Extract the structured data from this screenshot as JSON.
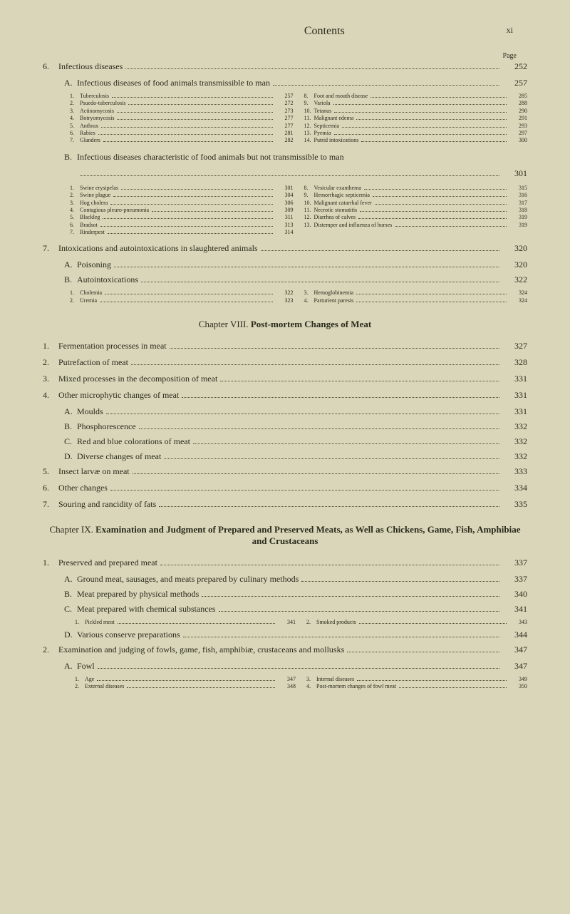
{
  "header": {
    "title": "Contents",
    "roman": "xi",
    "pageLabel": "Page"
  },
  "sections": [
    {
      "num": "6.",
      "title": "Infectious diseases",
      "page": "252",
      "subs": [
        {
          "letter": "A.",
          "title": "Infectious diseases of food animals transmissible to man",
          "page": "257",
          "itemsLeft": [
            {
              "n": "1.",
              "t": "Tuberculosis",
              "p": "257"
            },
            {
              "n": "2.",
              "t": "Psuedo-tuberculosis",
              "p": "272"
            },
            {
              "n": "3.",
              "t": "Actinomycosis",
              "p": "273"
            },
            {
              "n": "4.",
              "t": "Botryomycosis",
              "p": "277"
            },
            {
              "n": "5.",
              "t": "Anthrax",
              "p": "277"
            },
            {
              "n": "6.",
              "t": "Rabies",
              "p": "281"
            },
            {
              "n": "7.",
              "t": "Glanders",
              "p": "282"
            }
          ],
          "itemsRight": [
            {
              "n": "8.",
              "t": "Foot and mouth disease",
              "p": "285"
            },
            {
              "n": "9.",
              "t": "Variola",
              "p": "288"
            },
            {
              "n": "10.",
              "t": "Tetanus",
              "p": "290"
            },
            {
              "n": "11.",
              "t": "Malignant edema",
              "p": "291"
            },
            {
              "n": "12.",
              "t": "Septicemia",
              "p": "293"
            },
            {
              "n": "13.",
              "t": "Pyemia",
              "p": "297"
            },
            {
              "n": "14.",
              "t": "Putrid intoxications",
              "p": "300"
            }
          ]
        },
        {
          "letter": "B.",
          "title": "Infectious diseases characteristic of food animals but not transmissible to man",
          "page": "301",
          "itemsLeft": [
            {
              "n": "1.",
              "t": "Swine erysipelas",
              "p": "301"
            },
            {
              "n": "2.",
              "t": "Swine plague",
              "p": "304"
            },
            {
              "n": "3.",
              "t": "Hog cholera",
              "p": "306"
            },
            {
              "n": "4.",
              "t": "Contagious pleuro-pneumonia",
              "p": "309"
            },
            {
              "n": "5.",
              "t": "Blackleg",
              "p": "311"
            },
            {
              "n": "6.",
              "t": "Bradsot",
              "p": "313"
            },
            {
              "n": "7.",
              "t": "Rinderpest",
              "p": "314"
            }
          ],
          "itemsRight": [
            {
              "n": "8.",
              "t": "Vesicular exanthema",
              "p": "315"
            },
            {
              "n": "9.",
              "t": "Hemorrhagic septicemia",
              "p": "316"
            },
            {
              "n": "10.",
              "t": "Malignant catarrhal fever",
              "p": "317"
            },
            {
              "n": "11.",
              "t": "Necrotic stomatitis",
              "p": "318"
            },
            {
              "n": "12.",
              "t": "Diarrhea of calves",
              "p": "319"
            },
            {
              "n": "13.",
              "t": "Distemper and influenza of horses",
              "p": "319"
            }
          ]
        }
      ]
    },
    {
      "num": "7.",
      "title": "Intoxications and autointoxications in slaughtered animals",
      "page": "320",
      "subs": [
        {
          "letter": "A.",
          "title": "Poisoning",
          "page": "320"
        },
        {
          "letter": "B.",
          "title": "Autointoxications",
          "page": "322",
          "itemsLeft": [
            {
              "n": "1.",
              "t": "Cholemia",
              "p": "322"
            },
            {
              "n": "2.",
              "t": "Uremia",
              "p": "323"
            }
          ],
          "itemsRight": [
            {
              "n": "3.",
              "t": "Hemoglobinemia",
              "p": "324"
            },
            {
              "n": "4.",
              "t": "Parturient paresis",
              "p": "324"
            }
          ]
        }
      ]
    }
  ],
  "chapter8": {
    "label": "Chapter VIII.",
    "title": "Post-mortem Changes of Meat",
    "entries": [
      {
        "n": "1.",
        "t": "Fermentation processes in meat",
        "p": "327"
      },
      {
        "n": "2.",
        "t": "Putrefaction of meat",
        "p": "328"
      },
      {
        "n": "3.",
        "t": "Mixed processes in the decomposition of meat",
        "p": "331"
      },
      {
        "n": "4.",
        "t": "Other microphytic changes of meat",
        "p": "331"
      }
    ],
    "subEntries4": [
      {
        "l": "A.",
        "t": "Moulds",
        "p": "331"
      },
      {
        "l": "B.",
        "t": "Phosphorescence",
        "p": "332"
      },
      {
        "l": "C.",
        "t": "Red and blue colorations of meat",
        "p": "332"
      },
      {
        "l": "D.",
        "t": "Diverse changes of meat",
        "p": "332"
      }
    ],
    "entries2": [
      {
        "n": "5.",
        "t": "Insect larvæ on meat",
        "p": "333"
      },
      {
        "n": "6.",
        "t": "Other changes",
        "p": "334"
      },
      {
        "n": "7.",
        "t": "Souring and rancidity of fats",
        "p": "335"
      }
    ]
  },
  "chapter9": {
    "label": "Chapter IX.",
    "title": "Examination and Judgment of Prepared and Preserved Meats, as Well as Chickens, Game, Fish, Amphibiae and Crustaceans",
    "entries": [
      {
        "n": "1.",
        "t": "Preserved and prepared meat",
        "p": "337"
      }
    ],
    "subEntries1": [
      {
        "l": "A.",
        "t": "Ground meat, sausages, and meats prepared by culinary methods",
        "p": "337"
      },
      {
        "l": "B.",
        "t": "Meat prepared by physical methods",
        "p": "340"
      },
      {
        "l": "C.",
        "t": "Meat prepared with chemical substances",
        "p": "341"
      }
    ],
    "smallC": [
      {
        "n": "1.",
        "t": "Pickled meat",
        "p": "341"
      },
      {
        "n": "2.",
        "t": "Smoked products",
        "p": "343"
      }
    ],
    "subD": {
      "l": "D.",
      "t": "Various conserve preparations",
      "p": "344"
    },
    "entries2": [
      {
        "n": "2.",
        "t": "Examination and judging of fowls, game, fish, amphibiæ, crustaceans and mollusks",
        "p": "347"
      }
    ],
    "subFowl": {
      "l": "A.",
      "t": "Fowl",
      "p": "347"
    },
    "smallFowl": {
      "left": [
        {
          "n": "1.",
          "t": "Age",
          "p": "347"
        },
        {
          "n": "2.",
          "t": "External diseases",
          "p": "348"
        }
      ],
      "right": [
        {
          "n": "3.",
          "t": "Internal diseases",
          "p": "349"
        },
        {
          "n": "4.",
          "t": "Post-mortem changes of fowl meat",
          "p": "350"
        }
      ]
    }
  }
}
